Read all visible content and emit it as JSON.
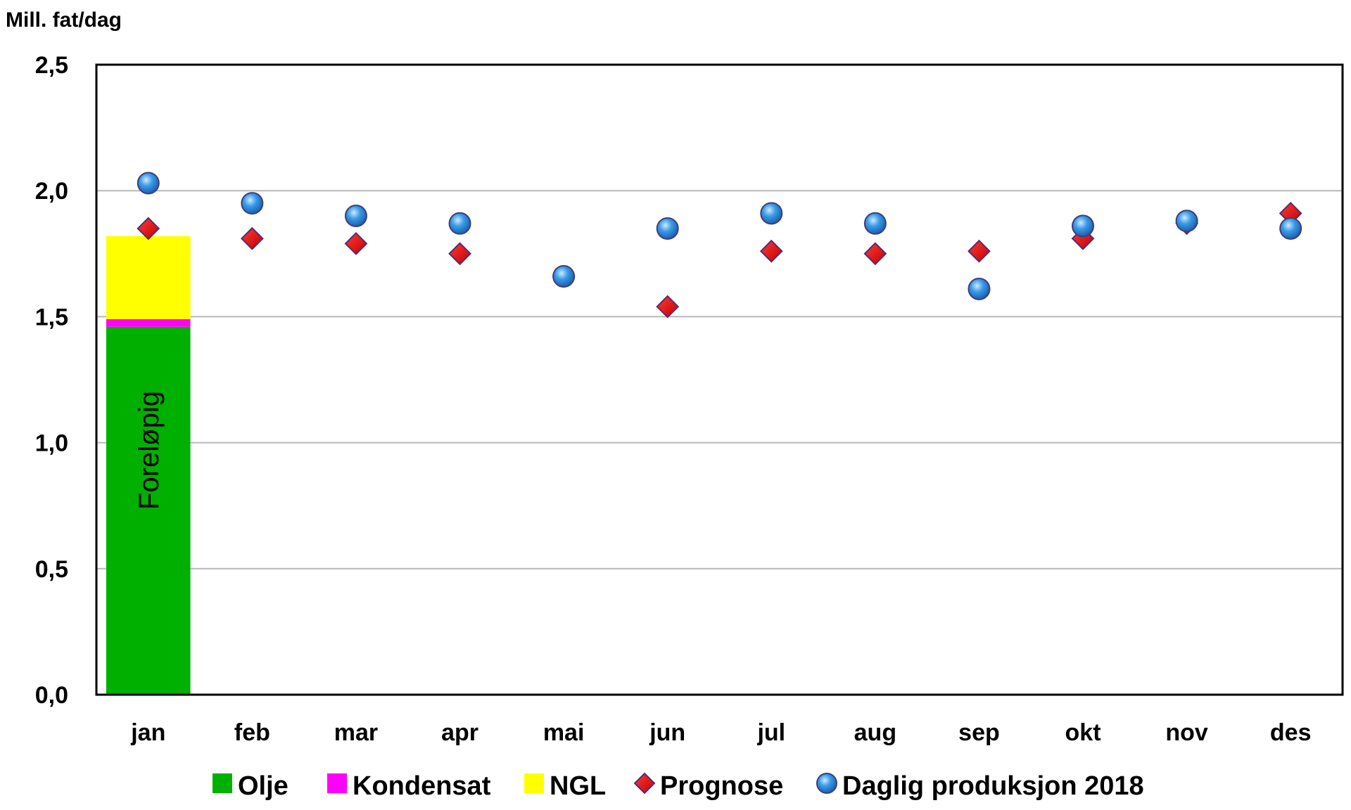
{
  "chart_data": {
    "type": "bar",
    "title": "",
    "ylabel": "Mill. fat/dag",
    "xlabel": "",
    "ylim": [
      0,
      2.5
    ],
    "yticks": [
      "0,0",
      "0,5",
      "1,0",
      "1,5",
      "2,0",
      "2,5"
    ],
    "grid": true,
    "legend_position": "bottom",
    "categories": [
      "jan",
      "feb",
      "mar",
      "apr",
      "mai",
      "jun",
      "jul",
      "aug",
      "sep",
      "okt",
      "nov",
      "des"
    ],
    "stacked_series": [
      {
        "name": "Olje",
        "color": "#00b000",
        "values": [
          1.46,
          null,
          null,
          null,
          null,
          null,
          null,
          null,
          null,
          null,
          null,
          null
        ]
      },
      {
        "name": "Kondensat",
        "color": "#ff00ff",
        "values": [
          0.03,
          null,
          null,
          null,
          null,
          null,
          null,
          null,
          null,
          null,
          null,
          null
        ]
      },
      {
        "name": "NGL",
        "color": "#ffff00",
        "values": [
          0.33,
          null,
          null,
          null,
          null,
          null,
          null,
          null,
          null,
          null,
          null,
          null
        ]
      }
    ],
    "marker_series": [
      {
        "name": "Prognose",
        "marker": "diamond",
        "color": "#e00000",
        "values": [
          1.85,
          1.81,
          1.79,
          1.75,
          1.66,
          1.54,
          1.76,
          1.75,
          1.76,
          1.81,
          1.87,
          1.91
        ]
      },
      {
        "name": "Daglig produksjon 2018",
        "marker": "circle",
        "color": "#3a8fdc",
        "values": [
          2.03,
          1.95,
          1.9,
          1.87,
          1.66,
          1.85,
          1.91,
          1.87,
          1.61,
          1.86,
          1.88,
          1.85
        ]
      }
    ],
    "annotations": [
      {
        "text": "Foreløpig",
        "category": "jan"
      }
    ]
  }
}
